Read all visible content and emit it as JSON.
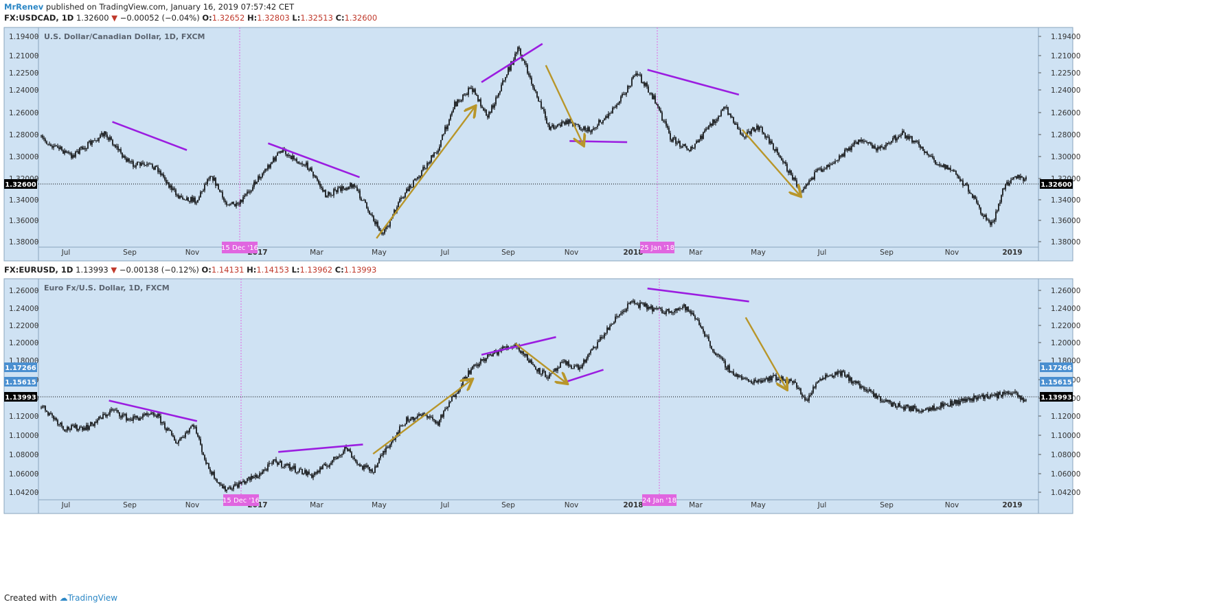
{
  "header": {
    "author": "MrRenev",
    "published": "published on TradingView.com, January 16, 2019 07:57:42 CET"
  },
  "footer": {
    "created": "Created with",
    "brand": "TradingView"
  },
  "colors": {
    "bg": "#cfe2f3",
    "candle": "#000000",
    "purple": "#9b1de0",
    "gold": "#b8962a",
    "date_marker": "#e066e0",
    "price_badge": "#000000",
    "blue_badge": "#4a8fd0"
  },
  "chart_data": [
    {
      "type": "candlestick",
      "symbol": "FX:USDCAD",
      "interval": "1D",
      "last": "1.32600",
      "change": "−0.00052 (−0.04%)",
      "open": "1.32652",
      "high": "1.32803",
      "low": "1.32513",
      "close": "1.32600",
      "title": "U.S. Dollar/Canadian Dollar, 1D, FXCM",
      "inverted_scale": true,
      "ylim": [
        1.194,
        1.384
      ],
      "y_ticks": [
        "1.19400",
        "1.21000",
        "1.22500",
        "1.24000",
        "1.26000",
        "1.28000",
        "1.30000",
        "1.32000",
        "1.34000",
        "1.36000",
        "1.38000"
      ],
      "x_ticks": [
        "Jul",
        "Sep",
        "Nov",
        "2017",
        "Mar",
        "May",
        "Jul",
        "Sep",
        "Nov",
        "2018",
        "Mar",
        "May",
        "Jul",
        "Sep",
        "Nov",
        "2019"
      ],
      "date_markers": [
        "15 Dec '16",
        "25 Jan '18"
      ],
      "price_badges": [
        "1.32600"
      ],
      "path": [
        [
          2016.46,
          1.29
        ],
        [
          2016.55,
          1.305
        ],
        [
          2016.65,
          1.285
        ],
        [
          2016.72,
          1.312
        ],
        [
          2016.8,
          1.315
        ],
        [
          2016.86,
          1.34
        ],
        [
          2016.92,
          1.345
        ],
        [
          2016.96,
          1.32
        ],
        [
          2017.0,
          1.345
        ],
        [
          2017.04,
          1.35
        ],
        [
          2017.1,
          1.325
        ],
        [
          2017.17,
          1.3
        ],
        [
          2017.25,
          1.315
        ],
        [
          2017.3,
          1.34
        ],
        [
          2017.38,
          1.33
        ],
        [
          2017.43,
          1.355
        ],
        [
          2017.47,
          1.375
        ],
        [
          2017.52,
          1.345
        ],
        [
          2017.58,
          1.32
        ],
        [
          2017.63,
          1.3
        ],
        [
          2017.68,
          1.26
        ],
        [
          2017.73,
          1.245
        ],
        [
          2017.78,
          1.27
        ],
        [
          2017.83,
          1.235
        ],
        [
          2017.87,
          1.21
        ],
        [
          2017.92,
          1.25
        ],
        [
          2017.96,
          1.28
        ],
        [
          2018.02,
          1.275
        ],
        [
          2018.08,
          1.283
        ],
        [
          2018.13,
          1.27
        ],
        [
          2018.18,
          1.25
        ],
        [
          2018.22,
          1.232
        ],
        [
          2018.27,
          1.255
        ],
        [
          2018.32,
          1.29
        ],
        [
          2018.38,
          1.3
        ],
        [
          2018.43,
          1.28
        ],
        [
          2018.48,
          1.262
        ],
        [
          2018.53,
          1.287
        ],
        [
          2018.58,
          1.28
        ],
        [
          2018.63,
          1.3
        ],
        [
          2018.7,
          1.335
        ],
        [
          2018.75,
          1.32
        ],
        [
          2018.82,
          1.305
        ],
        [
          2018.88,
          1.29
        ],
        [
          2018.93,
          1.3
        ],
        [
          2019.0,
          1.285
        ],
        [
          2019.05,
          1.295
        ],
        [
          2019.1,
          1.31
        ],
        [
          2019.15,
          1.318
        ],
        [
          2019.2,
          1.335
        ],
        [
          2019.24,
          1.358
        ],
        [
          2019.27,
          1.366
        ],
        [
          2019.3,
          1.335
        ],
        [
          2019.33,
          1.322
        ],
        [
          2019.36,
          1.326
        ]
      ],
      "annotations": [
        {
          "kind": "trendline",
          "color": "purple",
          "points": [
            [
              2016.67,
              1.275
            ],
            [
              2016.89,
              1.3
            ]
          ]
        },
        {
          "kind": "trendline",
          "color": "purple",
          "points": [
            [
              2017.13,
              1.294
            ],
            [
              2017.4,
              1.324
            ]
          ]
        },
        {
          "kind": "trendline",
          "color": "purple",
          "points": [
            [
              2017.76,
              1.24
            ],
            [
              2017.94,
              1.206
            ]
          ]
        },
        {
          "kind": "trendline",
          "color": "purple",
          "points": [
            [
              2018.02,
              1.292
            ],
            [
              2018.19,
              1.293
            ]
          ]
        },
        {
          "kind": "trendline",
          "color": "purple",
          "points": [
            [
              2018.25,
              1.229
            ],
            [
              2018.52,
              1.251
            ]
          ]
        },
        {
          "kind": "arrow",
          "color": "gold",
          "points": [
            [
              2017.45,
              1.378
            ],
            [
              2017.74,
              1.262
            ]
          ]
        },
        {
          "kind": "arrow",
          "color": "gold",
          "points": [
            [
              2017.95,
              1.225
            ],
            [
              2018.06,
              1.295
            ]
          ]
        },
        {
          "kind": "arrow",
          "color": "gold",
          "points": [
            [
              2018.53,
              1.282
            ],
            [
              2018.7,
              1.34
            ]
          ]
        }
      ]
    },
    {
      "type": "candlestick",
      "symbol": "FX:EURUSD",
      "interval": "1D",
      "last": "1.13993",
      "change": "−0.00138 (−0.12%)",
      "open": "1.14131",
      "high": "1.14153",
      "low": "1.13962",
      "close": "1.13993",
      "title": "Euro Fx/U.S. Dollar, 1D, FXCM",
      "inverted_scale": false,
      "ylim": [
        1.036,
        1.266
      ],
      "y_ticks": [
        "1.26000",
        "1.24000",
        "1.22000",
        "1.20000",
        "1.18000",
        "1.16000",
        "1.14000",
        "1.12000",
        "1.10000",
        "1.08000",
        "1.06000",
        "1.04200"
      ],
      "x_ticks": [
        "Jul",
        "Sep",
        "Nov",
        "2017",
        "Mar",
        "May",
        "Jul",
        "Sep",
        "Nov",
        "2018",
        "Mar",
        "May",
        "Jul",
        "Sep",
        "Nov",
        "2019"
      ],
      "date_markers": [
        "15 Dec '16",
        "24 Jan '18"
      ],
      "price_badges": [
        "1.17266",
        "1.15615",
        "1.13993"
      ],
      "path": [
        [
          2016.46,
          1.135
        ],
        [
          2016.53,
          1.11
        ],
        [
          2016.6,
          1.112
        ],
        [
          2016.67,
          1.13
        ],
        [
          2016.72,
          1.12
        ],
        [
          2016.8,
          1.125
        ],
        [
          2016.86,
          1.095
        ],
        [
          2016.91,
          1.115
        ],
        [
          2016.95,
          1.07
        ],
        [
          2017.0,
          1.045
        ],
        [
          2017.04,
          1.05
        ],
        [
          2017.1,
          1.06
        ],
        [
          2017.15,
          1.075
        ],
        [
          2017.2,
          1.068
        ],
        [
          2017.26,
          1.06
        ],
        [
          2017.32,
          1.075
        ],
        [
          2017.36,
          1.09
        ],
        [
          2017.4,
          1.07
        ],
        [
          2017.44,
          1.065
        ],
        [
          2017.48,
          1.09
        ],
        [
          2017.54,
          1.12
        ],
        [
          2017.6,
          1.125
        ],
        [
          2017.63,
          1.115
        ],
        [
          2017.67,
          1.14
        ],
        [
          2017.72,
          1.17
        ],
        [
          2017.77,
          1.185
        ],
        [
          2017.82,
          1.195
        ],
        [
          2017.86,
          1.2
        ],
        [
          2017.92,
          1.175
        ],
        [
          2017.96,
          1.165
        ],
        [
          2018.0,
          1.18
        ],
        [
          2018.05,
          1.175
        ],
        [
          2018.1,
          1.2
        ],
        [
          2018.15,
          1.225
        ],
        [
          2018.2,
          1.245
        ],
        [
          2018.25,
          1.24
        ],
        [
          2018.3,
          1.235
        ],
        [
          2018.36,
          1.24
        ],
        [
          2018.4,
          1.225
        ],
        [
          2018.45,
          1.19
        ],
        [
          2018.5,
          1.17
        ],
        [
          2018.55,
          1.16
        ],
        [
          2018.62,
          1.165
        ],
        [
          2018.68,
          1.16
        ],
        [
          2018.72,
          1.14
        ],
        [
          2018.76,
          1.165
        ],
        [
          2018.82,
          1.17
        ],
        [
          2018.86,
          1.16
        ],
        [
          2018.92,
          1.145
        ],
        [
          2018.98,
          1.135
        ],
        [
          2019.05,
          1.13
        ],
        [
          2019.12,
          1.135
        ],
        [
          2019.18,
          1.14
        ],
        [
          2019.24,
          1.145
        ],
        [
          2019.28,
          1.145
        ],
        [
          2019.32,
          1.15
        ],
        [
          2019.36,
          1.14
        ]
      ],
      "annotations": [
        {
          "kind": "trendline",
          "color": "purple",
          "points": [
            [
              2016.66,
              1.14
            ],
            [
              2016.92,
              1.118
            ]
          ]
        },
        {
          "kind": "trendline",
          "color": "purple",
          "points": [
            [
              2017.16,
              1.085
            ],
            [
              2017.41,
              1.093
            ]
          ]
        },
        {
          "kind": "trendline",
          "color": "purple",
          "points": [
            [
              2017.76,
              1.189
            ],
            [
              2017.98,
              1.208
            ]
          ]
        },
        {
          "kind": "trendline",
          "color": "purple",
          "points": [
            [
              2018.0,
              1.159
            ],
            [
              2018.12,
              1.173
            ]
          ]
        },
        {
          "kind": "trendline",
          "color": "purple",
          "points": [
            [
              2018.25,
              1.26
            ],
            [
              2018.55,
              1.246
            ]
          ]
        },
        {
          "kind": "arrow",
          "color": "gold",
          "points": [
            [
              2017.44,
              1.083
            ],
            [
              2017.73,
              1.162
            ]
          ]
        },
        {
          "kind": "arrow",
          "color": "gold",
          "points": [
            [
              2017.86,
              1.201
            ],
            [
              2018.01,
              1.159
            ]
          ]
        },
        {
          "kind": "arrow",
          "color": "gold",
          "points": [
            [
              2018.54,
              1.229
            ],
            [
              2018.66,
              1.153
            ]
          ]
        }
      ]
    }
  ]
}
